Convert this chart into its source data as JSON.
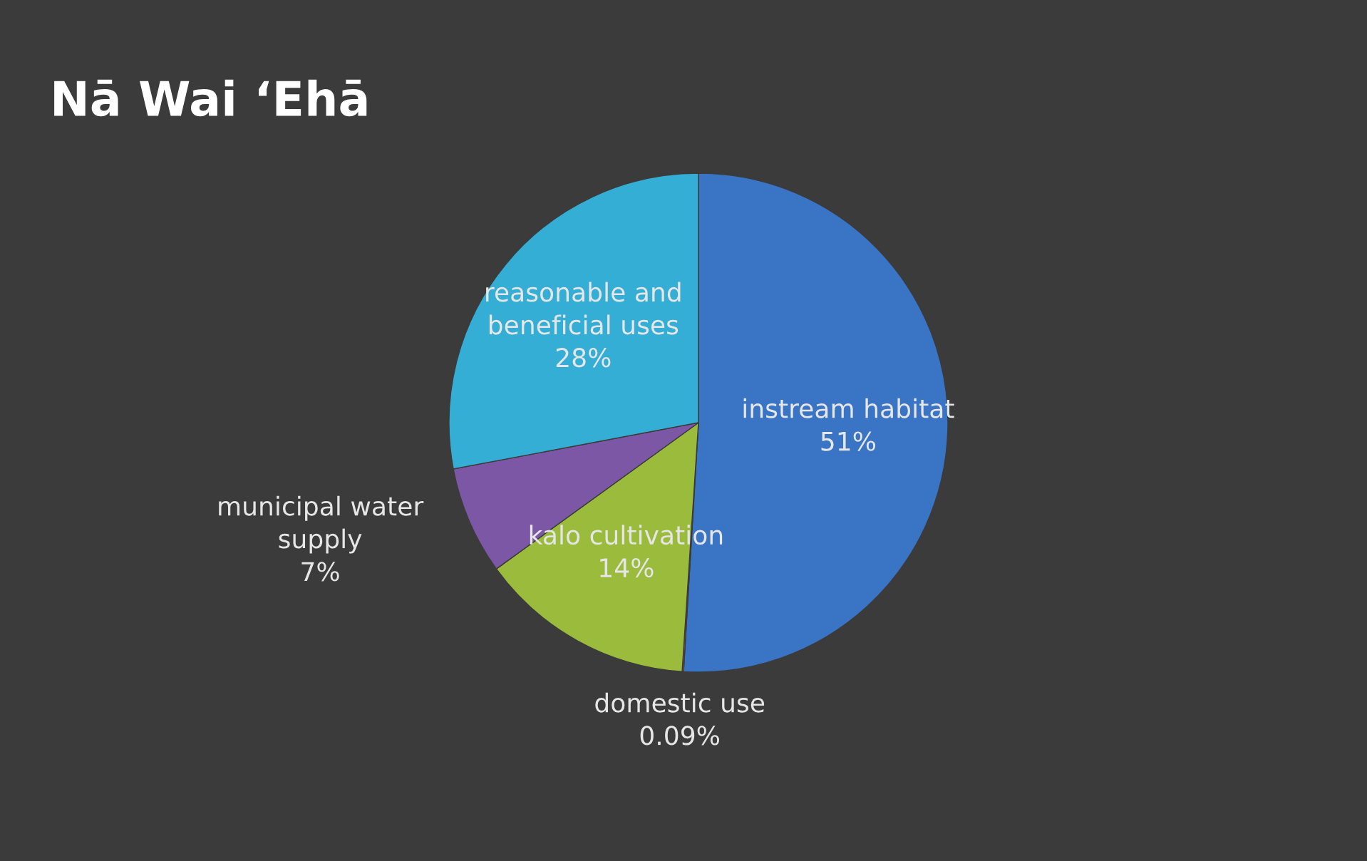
{
  "chart_data": {
    "type": "pie",
    "title": "Nā Wai ‘Ehā",
    "categories": [
      "instream habitat",
      "domestic use",
      "kalo cultivation",
      "municipal water\nsupply",
      "reasonable and\nbeneficial uses"
    ],
    "values": [
      51,
      0.09,
      14,
      7,
      28
    ],
    "value_labels": [
      "51%",
      "0.09%",
      "14%",
      "7%",
      "28%"
    ],
    "colors": [
      "#3a74c4",
      "#c0504d",
      "#9bbb3c",
      "#7c57a6",
      "#35aed6"
    ]
  }
}
